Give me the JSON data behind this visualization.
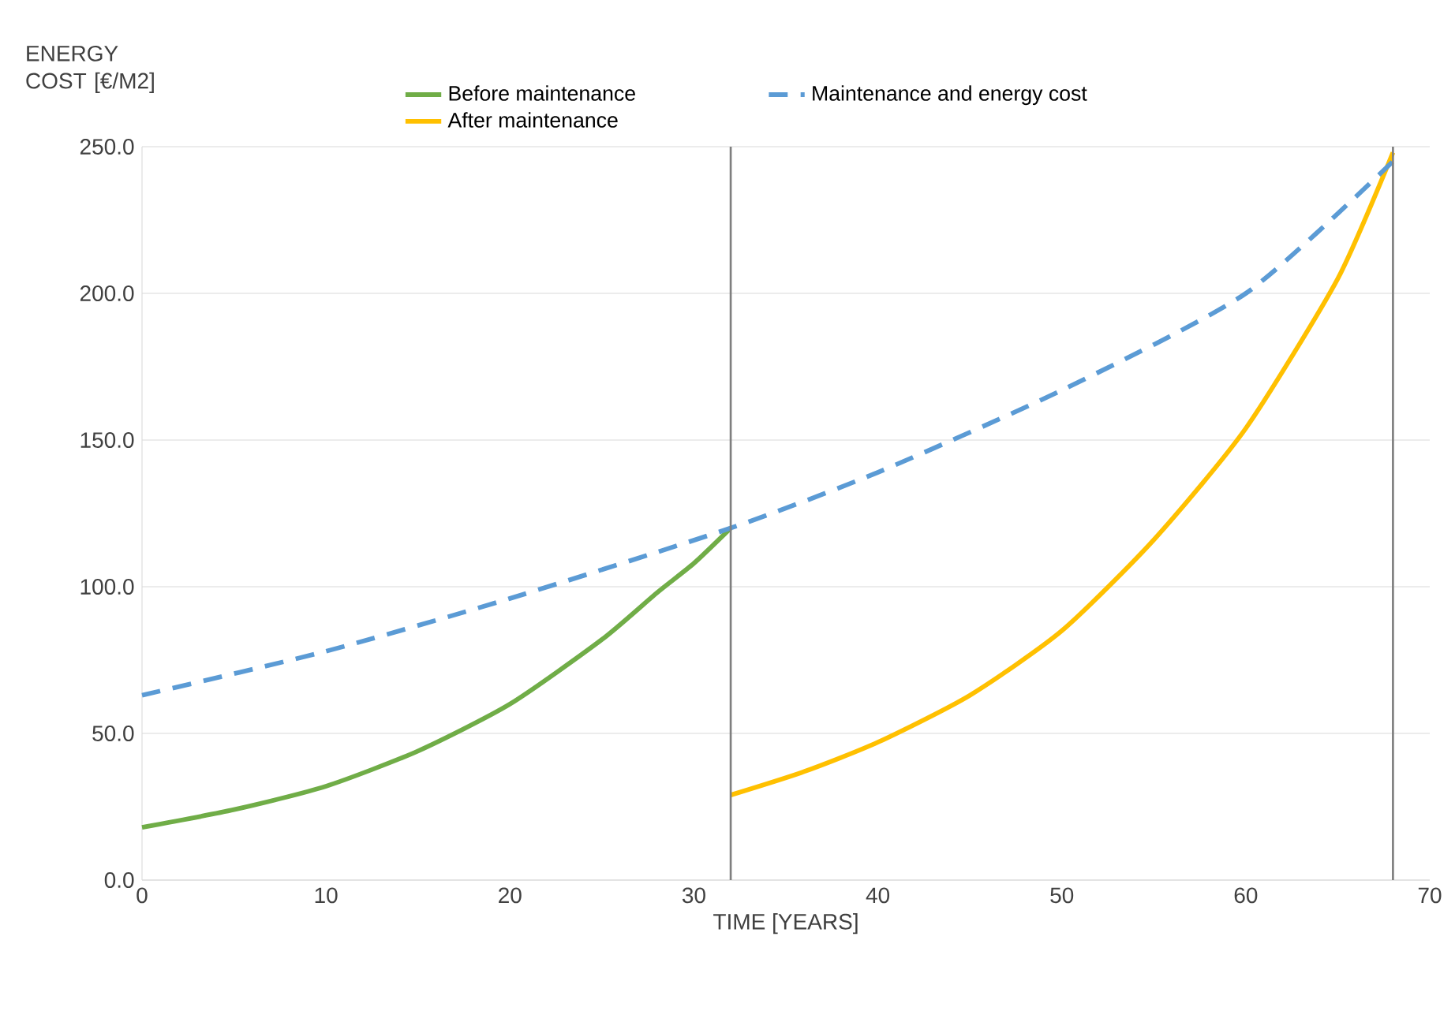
{
  "chart_data": {
    "type": "line",
    "xlabel": "TIME [YEARS]",
    "ylabel": "ENERGY COST [€/M2]",
    "xlim": [
      0,
      70
    ],
    "xticks": [
      0,
      10,
      20,
      30,
      40,
      50,
      60,
      70
    ],
    "ylim": [
      0,
      250
    ],
    "yticks": [
      {
        "value": 0,
        "label": "0.0"
      },
      {
        "value": 50,
        "label": "50.0"
      },
      {
        "value": 100,
        "label": "100.0"
      },
      {
        "value": 150,
        "label": "150.0"
      },
      {
        "value": 200,
        "label": "200.0"
      },
      {
        "value": 250,
        "label": "250.0"
      }
    ],
    "grid": "y",
    "legend": "top",
    "marker": "none",
    "ref_lines": [
      {
        "axis": "x",
        "value": 32,
        "color": "#7f7f7f"
      },
      {
        "axis": "x",
        "value": 68,
        "color": "#7f7f7f"
      }
    ],
    "series": [
      {
        "name": "Before maintenance",
        "color": "#70ad47",
        "line_style": "solid",
        "x": [
          0,
          5,
          10,
          15,
          20,
          25,
          28,
          30,
          32
        ],
        "values": [
          18,
          24,
          32,
          44,
          60,
          82,
          98,
          108,
          120
        ]
      },
      {
        "name": "After maintenance",
        "color": "#ffc000",
        "line_style": "solid",
        "x": [
          32,
          36,
          40,
          45,
          50,
          55,
          60,
          65,
          68
        ],
        "values": [
          29,
          37,
          47,
          63,
          85,
          116,
          154,
          205,
          248
        ]
      },
      {
        "name": "Maintenance and energy cost",
        "color": "#5b9bd5",
        "line_style": "dashed",
        "x": [
          0,
          10,
          20,
          32,
          40,
          50,
          60,
          68
        ],
        "values": [
          63,
          78,
          96,
          120,
          139,
          167,
          200,
          245
        ]
      }
    ]
  }
}
